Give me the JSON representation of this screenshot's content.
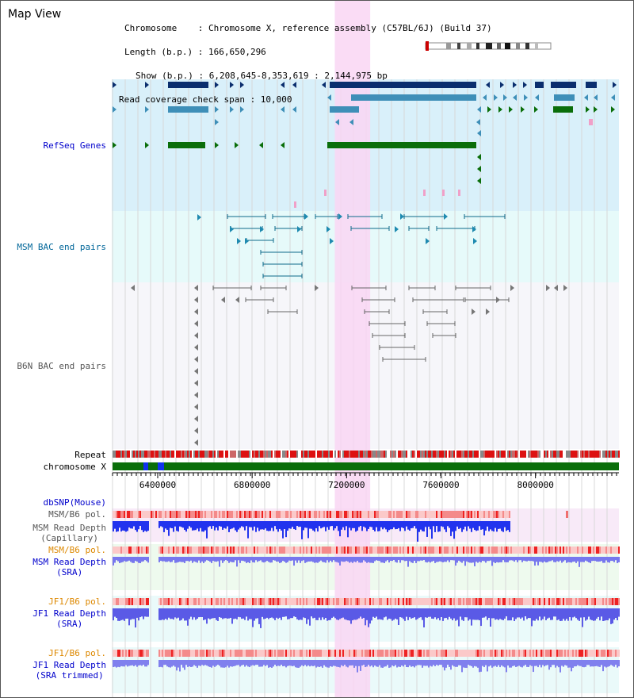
{
  "view_title": "Map View",
  "info": {
    "chromosome": "Chromosome    : Chromosome X, reference assembly (C57BL/6J) (Build 37)",
    "length": "Length (b.p.) : 166,650,296",
    "show": "Show (b.p.) : 6,208,645-8,353,619 : 2,144,975 bp",
    "coverage": "Read coverage check span : 10,000"
  },
  "tracks": {
    "refseq": "RefSeq Genes",
    "msm_bac": "MSM BAC end pairs",
    "b6n_bac": "B6N BAC end pairs",
    "repeat": "Repeat",
    "chromosome": "chromosome X",
    "dbsnp": "dbSNP(Mouse)",
    "msm_b6_pol_cap": "MSM/B6 pol.",
    "msm_read_depth_cap_1": "MSM Read Depth",
    "msm_read_depth_cap_2": "(Capillary)",
    "msm_b6_pol_sra": "MSM/B6 pol.",
    "msm_read_depth_sra_1": "MSM Read Depth",
    "msm_read_depth_sra_2": "(SRA)",
    "jf1_b6_pol_1": "JF1/B6 pol.",
    "jf1_read_depth_1": "JF1 Read Depth",
    "jf1_read_depth_2": "(SRA)",
    "jf1_b6_pol_2": "JF1/B6 pol.",
    "jf1_read_depth_trim_1": "JF1 Read Depth",
    "jf1_read_depth_trim_2": "(SRA trimmed)"
  },
  "axis": {
    "ticks": [
      "6400000",
      "6800000",
      "7200000",
      "7600000",
      "8000000"
    ],
    "tick_values": [
      6400000,
      6800000,
      7200000,
      7600000,
      8000000
    ],
    "range": [
      6208645,
      8353619
    ]
  },
  "highlight_range": [
    7150000,
    7300000
  ],
  "colors": {
    "label_blue": "#0000cc",
    "label_teal": "#006699",
    "label_gray": "#555555",
    "label_orange": "#dd8800",
    "refseq_bg": "#d9f0fa",
    "msm_bg": "#e6fafa",
    "b6n_bg": "#f6f6fa",
    "highlight": "#f9d6f3",
    "gene_dark": "#0b2e6e",
    "gene_mid": "#3e8fb8",
    "gene_green": "#0a6e0a"
  }
}
